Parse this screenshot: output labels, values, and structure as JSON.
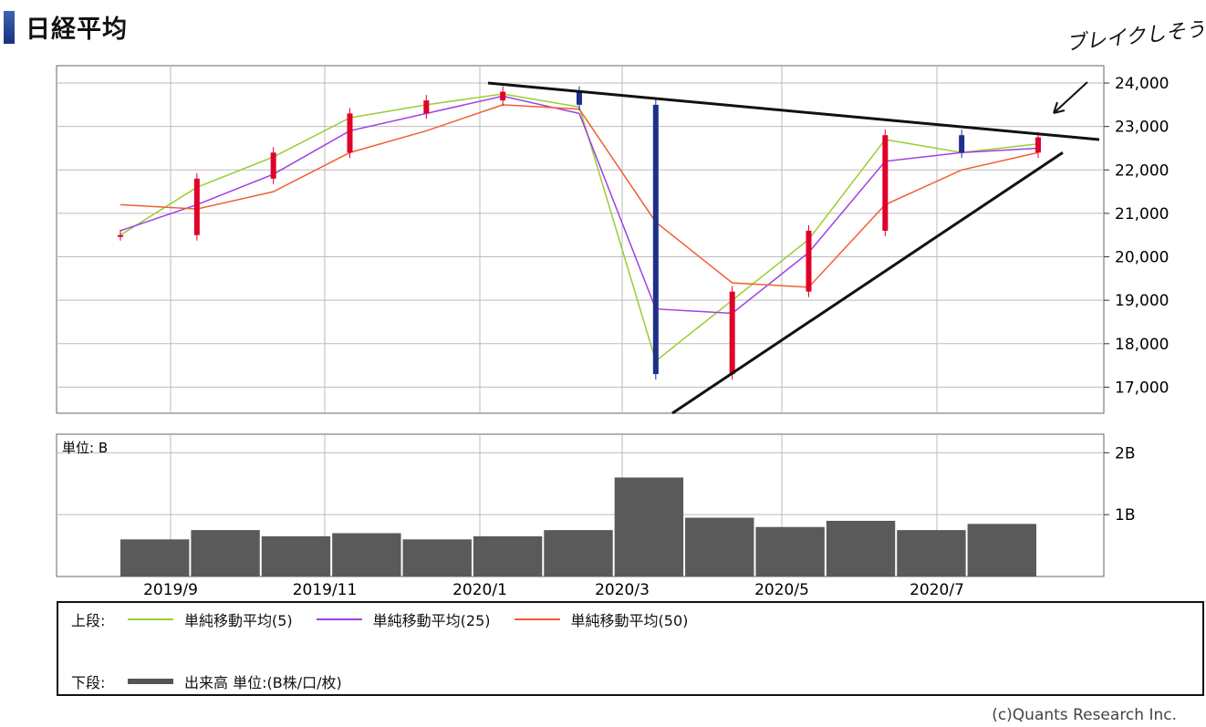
{
  "title": "日経平均",
  "hand_note": "ブレイクしそう",
  "copyright": "(c)Quants Research Inc.",
  "volume_unit_label": "単位: B",
  "legend": {
    "upper_label": "上段:",
    "lower_label": "下段:",
    "ma5": "単純移動平均(5)",
    "ma25": "単純移動平均(25)",
    "ma50": "単純移動平均(50)",
    "volume": "出来高 単位:(B株/口/枚)"
  },
  "colors": {
    "ma5": "#9acd32",
    "ma25": "#a040e0",
    "ma50": "#f06030",
    "up": "#e0002a",
    "down": "#1e2f8c",
    "volume": "#5a5a5a",
    "trendline": "#111111"
  },
  "chart_data": [
    {
      "type": "line",
      "title": "日経平均",
      "x": [
        "2019/8",
        "2019/9",
        "2019/10",
        "2019/11",
        "2019/12",
        "2020/1",
        "2020/2",
        "2020/3",
        "2020/4",
        "2020/5",
        "2020/6",
        "2020/7",
        "2020/8"
      ],
      "x_ticks": [
        "2019/9",
        "2019/11",
        "2020/1",
        "2020/3",
        "2020/5",
        "2020/7"
      ],
      "y_ticks": [
        "24,000",
        "23,000",
        "22,000",
        "21,000",
        "20,000",
        "19,000",
        "18,000",
        "17,000"
      ],
      "ylim": [
        16400,
        24400
      ],
      "series": [
        {
          "name": "日経平均",
          "values": [
            20500,
            21800,
            22400,
            23300,
            23600,
            23800,
            23500,
            17300,
            19200,
            20600,
            22800,
            22400,
            22750
          ]
        },
        {
          "name": "単純移動平均(5)",
          "values": [
            20500,
            21600,
            22300,
            23200,
            23500,
            23750,
            23450,
            17600,
            19000,
            20400,
            22700,
            22400,
            22600
          ]
        },
        {
          "name": "単純移動平均(25)",
          "values": [
            20600,
            21200,
            21900,
            22900,
            23300,
            23700,
            23300,
            18800,
            18700,
            20100,
            22200,
            22400,
            22500
          ]
        },
        {
          "name": "単純移動平均(50)",
          "values": [
            21200,
            21100,
            21500,
            22400,
            22900,
            23500,
            23400,
            20800,
            19400,
            19300,
            21200,
            22000,
            22400
          ]
        }
      ],
      "annotations": {
        "resistance_line": {
          "from": [
            "2020/1",
            24000
          ],
          "to": [
            "2020/8",
            22700
          ]
        },
        "support_line": {
          "from": [
            "2020/3",
            16400
          ],
          "to": [
            "2020/8",
            22400
          ]
        }
      },
      "grid": true,
      "y_axis_position": "right"
    },
    {
      "type": "bar",
      "title": "出来高",
      "ylabel": "単位: B",
      "y_ticks": [
        "2B",
        "1B"
      ],
      "ylim": [
        0,
        2.3
      ],
      "x": [
        "2019/8",
        "2019/9",
        "2019/10",
        "2019/11",
        "2019/12",
        "2020/1",
        "2020/2",
        "2020/3",
        "2020/4",
        "2020/5",
        "2020/6",
        "2020/7",
        "2020/8"
      ],
      "values": [
        0.6,
        0.75,
        0.65,
        0.7,
        0.6,
        0.65,
        0.75,
        1.6,
        0.95,
        0.8,
        0.9,
        0.75,
        0.85
      ],
      "grid": true
    }
  ]
}
